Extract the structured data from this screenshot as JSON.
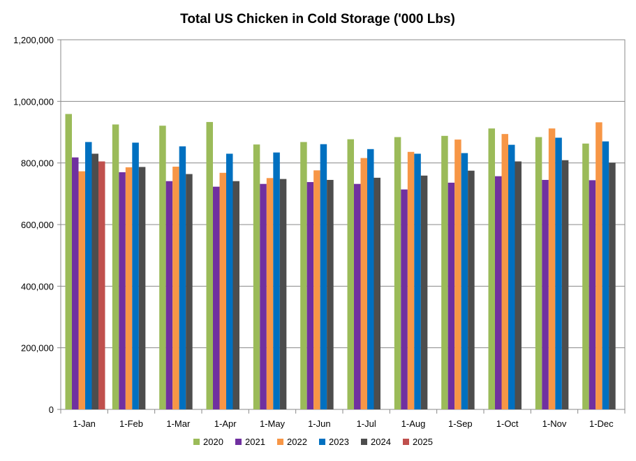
{
  "chart_data": {
    "type": "bar",
    "title": "Total US Chicken in Cold Storage ('000 Lbs)",
    "xlabel": "",
    "ylabel": "",
    "ylim": [
      0,
      1200000
    ],
    "yticks": [
      0,
      200000,
      400000,
      600000,
      800000,
      1000000,
      1200000
    ],
    "ytick_labels": [
      "0",
      "200,000",
      "400,000",
      "600,000",
      "800,000",
      "1,000,000",
      "1,200,000"
    ],
    "grid": true,
    "legend_position": "bottom",
    "categories": [
      "1-Jan",
      "1-Feb",
      "1-Mar",
      "1-Apr",
      "1-May",
      "1-Jun",
      "1-Jul",
      "1-Aug",
      "1-Sep",
      "1-Oct",
      "1-Nov",
      "1-Dec"
    ],
    "series": [
      {
        "name": "2020",
        "color": "#9bbb59",
        "values": [
          959000,
          925000,
          921000,
          933000,
          860000,
          868000,
          877000,
          884000,
          888000,
          912000,
          884000,
          863000
        ]
      },
      {
        "name": "2021",
        "color": "#7030a0",
        "values": [
          818000,
          770000,
          741000,
          723000,
          732000,
          738000,
          732000,
          714000,
          736000,
          757000,
          745000,
          744000
        ]
      },
      {
        "name": "2022",
        "color": "#f79646",
        "values": [
          773000,
          786000,
          788000,
          768000,
          751000,
          776000,
          816000,
          836000,
          876000,
          894000,
          912000,
          932000
        ]
      },
      {
        "name": "2023",
        "color": "#0070c0",
        "values": [
          868000,
          866000,
          854000,
          830000,
          834000,
          861000,
          845000,
          830000,
          832000,
          859000,
          882000,
          870000
        ]
      },
      {
        "name": "2024",
        "color": "#4d4d4d",
        "values": [
          830000,
          787000,
          764000,
          741000,
          748000,
          745000,
          752000,
          759000,
          775000,
          805000,
          809000,
          801000
        ]
      },
      {
        "name": "2025",
        "color": "#c0504d",
        "values": [
          805000,
          null,
          null,
          null,
          null,
          null,
          null,
          null,
          null,
          null,
          null,
          null
        ]
      }
    ]
  }
}
